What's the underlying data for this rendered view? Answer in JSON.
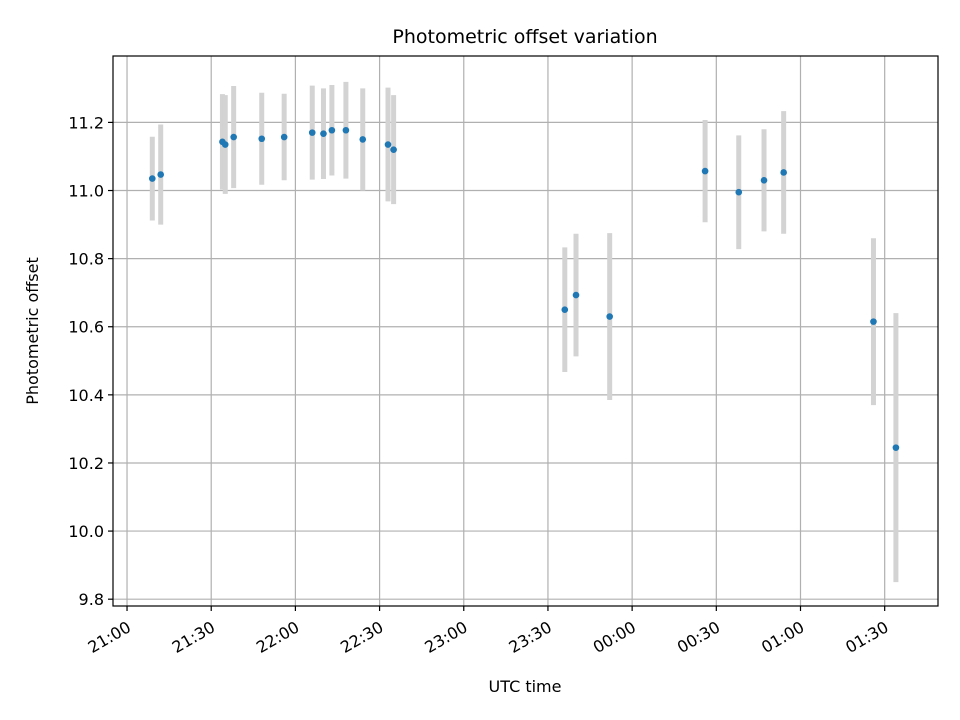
{
  "chart_data": {
    "type": "scatter",
    "title": "Photometric offset variation",
    "xlabel": "UTC time",
    "ylabel": "Photometric offset",
    "x_tick_labels": [
      "21:00",
      "21:30",
      "22:00",
      "22:30",
      "23:00",
      "23:30",
      "00:00",
      "00:30",
      "01:00",
      "01:30"
    ],
    "y_tick_labels": [
      "9.8",
      "10.0",
      "10.2",
      "10.4",
      "10.6",
      "10.8",
      "11.0",
      "11.2"
    ],
    "xlim": [
      "20:55",
      "01:49"
    ],
    "ylim": [
      9.78,
      11.395
    ],
    "grid": true,
    "colors": {
      "point": "#1f77b4",
      "errorbar": "#d3d3d3",
      "grid": "#b0b0b0"
    },
    "points": [
      {
        "x": "21:09",
        "y": 11.035,
        "err": 0.123
      },
      {
        "x": "21:12",
        "y": 11.047,
        "err": 0.147
      },
      {
        "x": "21:34",
        "y": 11.143,
        "err": 0.14
      },
      {
        "x": "21:35",
        "y": 11.135,
        "err": 0.145
      },
      {
        "x": "21:38",
        "y": 11.157,
        "err": 0.15
      },
      {
        "x": "21:48",
        "y": 11.152,
        "err": 0.135
      },
      {
        "x": "21:56",
        "y": 11.157,
        "err": 0.127
      },
      {
        "x": "22:06",
        "y": 11.17,
        "err": 0.138
      },
      {
        "x": "22:10",
        "y": 11.167,
        "err": 0.133
      },
      {
        "x": "22:13",
        "y": 11.177,
        "err": 0.133
      },
      {
        "x": "22:18",
        "y": 11.177,
        "err": 0.142
      },
      {
        "x": "22:24",
        "y": 11.15,
        "err": 0.15
      },
      {
        "x": "22:33",
        "y": 11.135,
        "err": 0.167
      },
      {
        "x": "22:35",
        "y": 11.12,
        "err": 0.16
      },
      {
        "x": "23:36",
        "y": 10.65,
        "err": 0.183
      },
      {
        "x": "23:40",
        "y": 10.693,
        "err": 0.18
      },
      {
        "x": "23:52",
        "y": 10.63,
        "err": 0.245
      },
      {
        "x": "00:26",
        "y": 11.057,
        "err": 0.15
      },
      {
        "x": "00:38",
        "y": 10.995,
        "err": 0.167
      },
      {
        "x": "00:47",
        "y": 11.03,
        "err": 0.15
      },
      {
        "x": "00:54",
        "y": 11.053,
        "err": 0.18
      },
      {
        "x": "01:26",
        "y": 10.615,
        "err": 0.245
      },
      {
        "x": "01:34",
        "y": 10.245,
        "err": 0.395
      }
    ]
  }
}
